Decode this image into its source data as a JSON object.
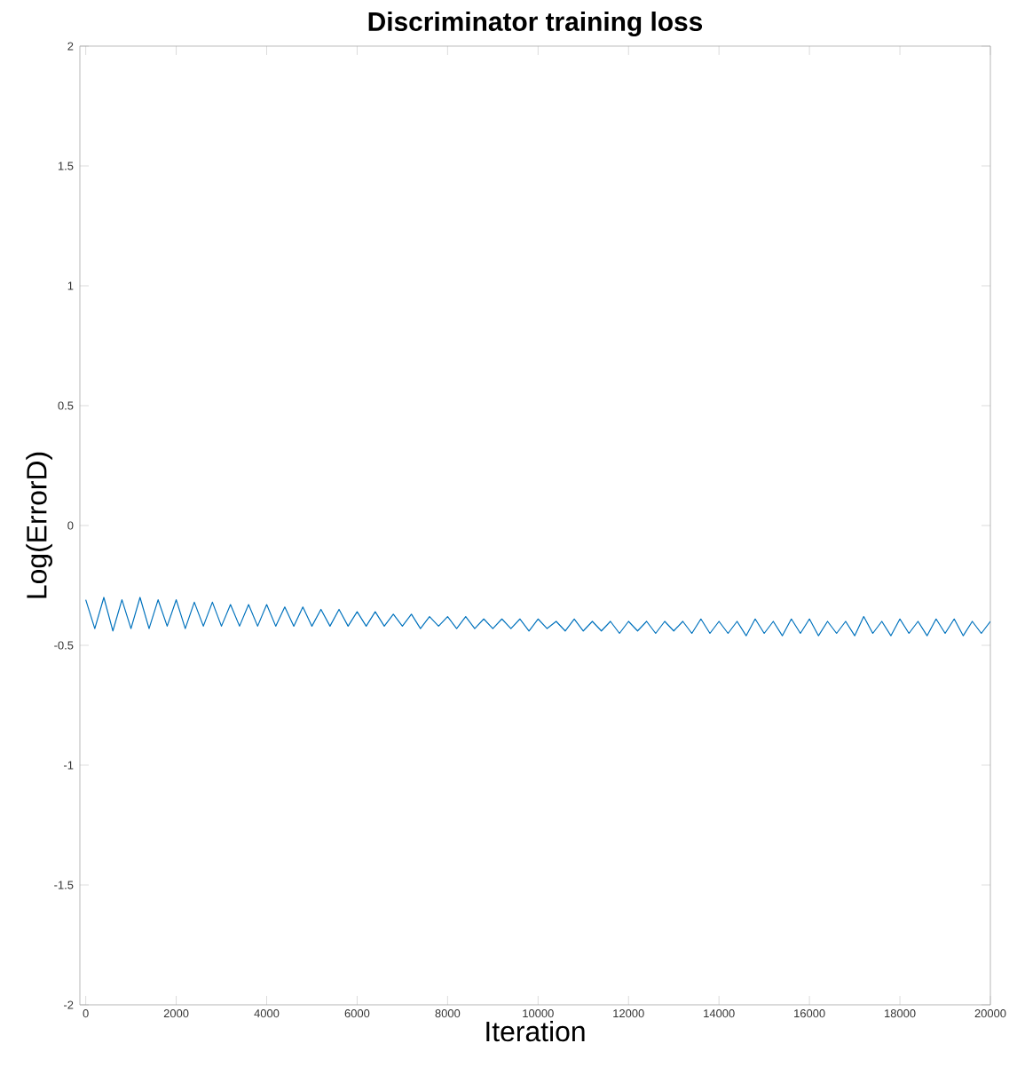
{
  "chart_data": {
    "type": "line",
    "title": "Discriminator training loss",
    "xlabel": "Iteration",
    "ylabel": "Log(ErrorD)",
    "xlim": [
      -130,
      20000
    ],
    "ylim": [
      -2,
      2
    ],
    "xticks": [
      0,
      2000,
      4000,
      6000,
      8000,
      10000,
      12000,
      14000,
      16000,
      18000,
      20000
    ],
    "yticks": [
      -2,
      -1.5,
      -1,
      -0.5,
      0,
      0.5,
      1,
      1.5,
      2
    ],
    "grid": false,
    "marker": "none",
    "line_style": "solid",
    "x": [
      0,
      200,
      400,
      600,
      800,
      1000,
      1200,
      1400,
      1600,
      1800,
      2000,
      2200,
      2400,
      2600,
      2800,
      3000,
      3200,
      3400,
      3600,
      3800,
      4000,
      4200,
      4400,
      4600,
      4800,
      5000,
      5200,
      5400,
      5600,
      5800,
      6000,
      6200,
      6400,
      6600,
      6800,
      7000,
      7200,
      7400,
      7600,
      7800,
      8000,
      8200,
      8400,
      8600,
      8800,
      9000,
      9200,
      9400,
      9600,
      9800,
      10000,
      10200,
      10400,
      10600,
      10800,
      11000,
      11200,
      11400,
      11600,
      11800,
      12000,
      12200,
      12400,
      12600,
      12800,
      13000,
      13200,
      13400,
      13600,
      13800,
      14000,
      14200,
      14400,
      14600,
      14800,
      15000,
      15200,
      15400,
      15600,
      15800,
      16000,
      16200,
      16400,
      16600,
      16800,
      17000,
      17200,
      17400,
      17600,
      17800,
      18000,
      18200,
      18400,
      18600,
      18800,
      19000,
      19200,
      19400,
      19600,
      19800,
      20000
    ],
    "series": [
      {
        "color": "#0072bd",
        "values": [
          -0.31,
          -0.43,
          -0.3,
          -0.44,
          -0.31,
          -0.43,
          -0.3,
          -0.43,
          -0.31,
          -0.42,
          -0.31,
          -0.43,
          -0.32,
          -0.42,
          -0.32,
          -0.42,
          -0.33,
          -0.42,
          -0.33,
          -0.42,
          -0.33,
          -0.42,
          -0.34,
          -0.42,
          -0.34,
          -0.42,
          -0.35,
          -0.42,
          -0.35,
          -0.42,
          -0.36,
          -0.42,
          -0.36,
          -0.42,
          -0.37,
          -0.42,
          -0.37,
          -0.43,
          -0.38,
          -0.42,
          -0.38,
          -0.43,
          -0.38,
          -0.43,
          -0.39,
          -0.43,
          -0.39,
          -0.43,
          -0.39,
          -0.44,
          -0.39,
          -0.43,
          -0.4,
          -0.44,
          -0.39,
          -0.44,
          -0.4,
          -0.44,
          -0.4,
          -0.45,
          -0.4,
          -0.44,
          -0.4,
          -0.45,
          -0.4,
          -0.44,
          -0.4,
          -0.45,
          -0.39,
          -0.45,
          -0.4,
          -0.45,
          -0.4,
          -0.46,
          -0.39,
          -0.45,
          -0.4,
          -0.46,
          -0.39,
          -0.45,
          -0.39,
          -0.46,
          -0.4,
          -0.45,
          -0.4,
          -0.46,
          -0.38,
          -0.45,
          -0.4,
          -0.46,
          -0.39,
          -0.45,
          -0.4,
          -0.46,
          -0.39,
          -0.45,
          -0.39,
          -0.46,
          -0.4,
          -0.45,
          -0.4
        ]
      }
    ]
  }
}
